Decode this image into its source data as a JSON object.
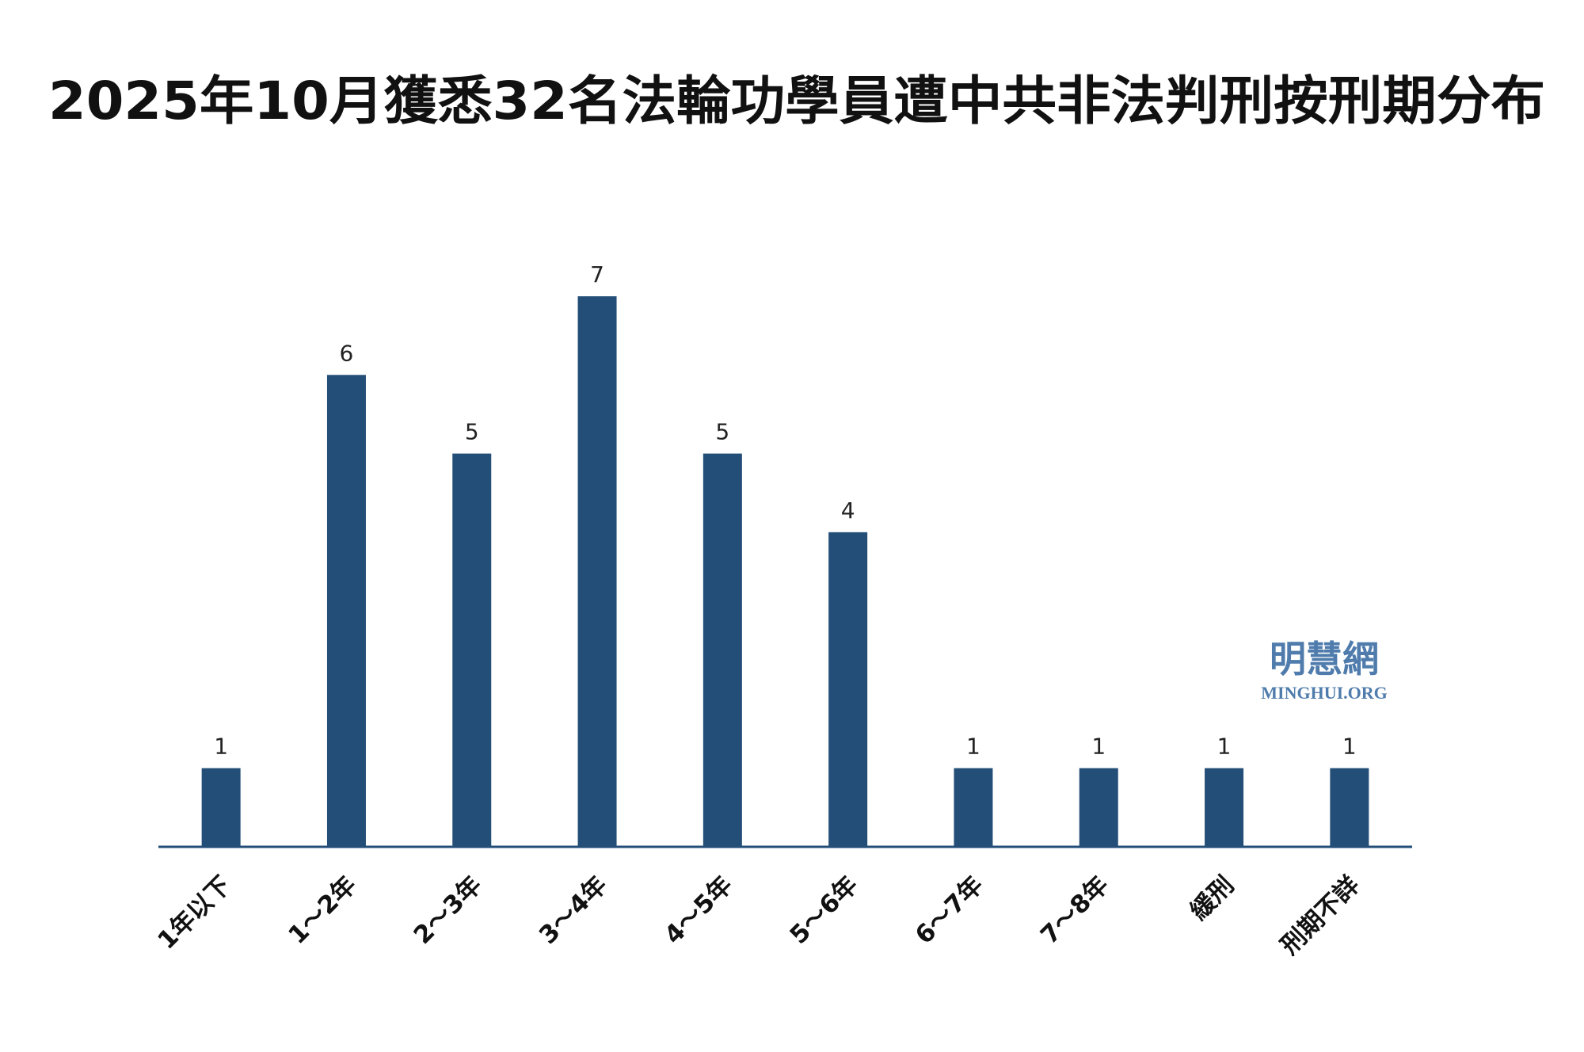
{
  "chart_data": {
    "type": "bar",
    "title": "2025年10月獲悉32名法輪功學員遭中共非法判刑按刑期分布",
    "categories": [
      "1年以下",
      "1～2年",
      "2～3年",
      "3～4年",
      "4～5年",
      "5～6年",
      "6～7年",
      "7～8年",
      "緩刑",
      "刑期不詳"
    ],
    "values": [
      1,
      6,
      5,
      7,
      5,
      4,
      1,
      1,
      1,
      1
    ],
    "color": "#234e78",
    "watermark": {
      "name": "明慧網",
      "url": "MINGHUI.ORG"
    }
  }
}
